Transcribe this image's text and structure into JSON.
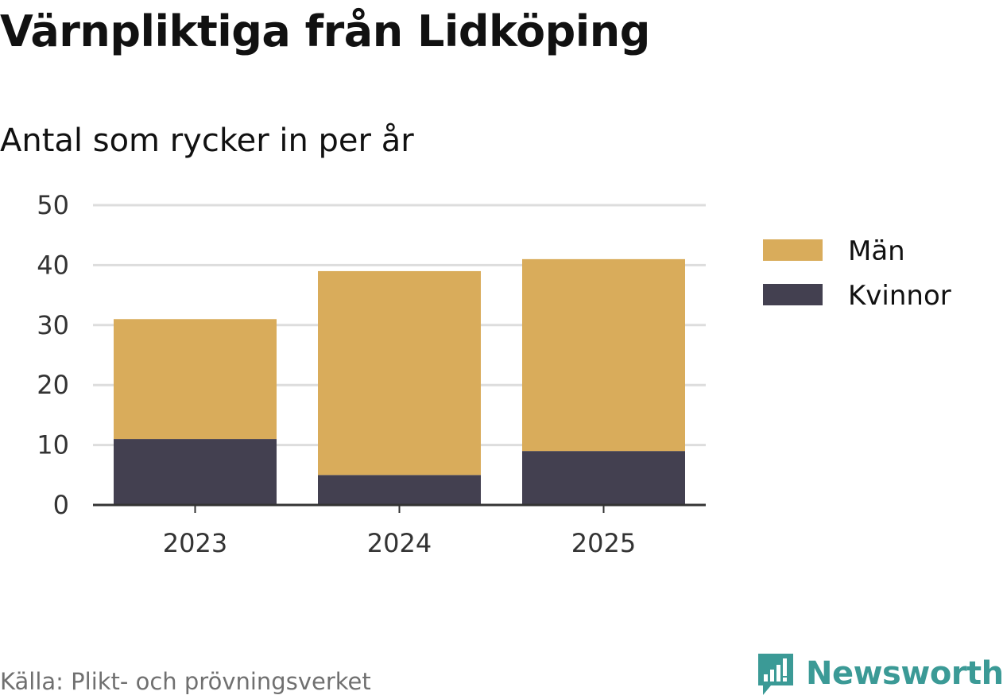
{
  "header": {
    "title": "Värnpliktiga från Lidköping",
    "subtitle": "Antal som rycker in per år"
  },
  "footer": {
    "source": "Källa: Plikt- och prövningsverket",
    "brand": "Newsworthy"
  },
  "colors": {
    "men": "#d9ac5b",
    "women": "#434050",
    "grid": "#dddddd",
    "axis": "#333333",
    "brand": "#3b9a96"
  },
  "chart_data": {
    "type": "bar",
    "stacked": true,
    "title": "Värnpliktiga från Lidköping",
    "subtitle": "Antal som rycker in per år",
    "categories": [
      "2023",
      "2024",
      "2025"
    ],
    "series": [
      {
        "name": "Kvinnor",
        "values": [
          11,
          5,
          9
        ]
      },
      {
        "name": "Män",
        "values": [
          20,
          34,
          32
        ]
      }
    ],
    "legend_order": [
      "Män",
      "Kvinnor"
    ],
    "legend_position": "right",
    "ylim": [
      0,
      50
    ],
    "yticks": [
      0,
      10,
      20,
      30,
      40,
      50
    ],
    "grid": true,
    "xlabel": "",
    "ylabel": ""
  }
}
